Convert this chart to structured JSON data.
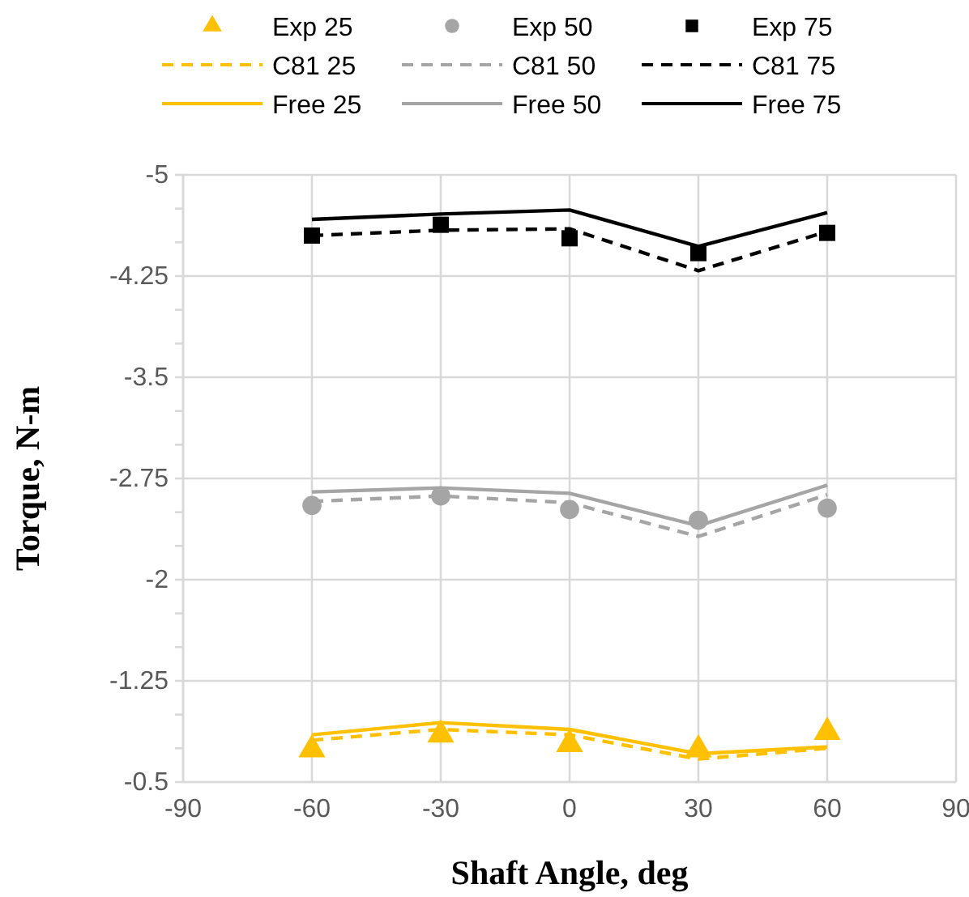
{
  "chart_data": {
    "type": "line",
    "xlabel": "Shaft Angle, deg",
    "ylabel": "Torque, N-m",
    "x": [
      -60,
      -30,
      0,
      30,
      60
    ],
    "xlim": [
      -90,
      90
    ],
    "xticks": [
      -90,
      -60,
      -30,
      0,
      30,
      60,
      90
    ],
    "ylim": [
      -0.5,
      -5
    ],
    "yticks": [
      -5,
      {
        "value": -4.75,
        "label": null
      },
      {
        "value": -4.5,
        "label": null
      },
      -4.25,
      {
        "value": -4,
        "label": null
      },
      {
        "value": -3.75,
        "label": null
      },
      -3.5,
      {
        "value": -3.25,
        "label": null
      },
      {
        "value": -3,
        "label": null
      },
      -2.75,
      {
        "value": -2.5,
        "label": null
      },
      {
        "value": -2.25,
        "label": null
      },
      -2,
      {
        "value": -1.75,
        "label": null
      },
      {
        "value": -1.5,
        "label": null
      },
      -1.25,
      {
        "value": -1,
        "label": null
      },
      {
        "value": -0.75,
        "label": null
      },
      -0.5
    ],
    "grid": true,
    "legend": "top",
    "series": [
      {
        "name": "Exp 25",
        "type": "scatter",
        "marker": "triangle",
        "color": "#ffc000",
        "values": [
          -0.74,
          -0.85,
          -0.78,
          -0.74,
          -0.87
        ]
      },
      {
        "name": "Exp 50",
        "type": "scatter",
        "marker": "circle",
        "color": "#a5a5a5",
        "values": [
          -2.55,
          -2.62,
          -2.52,
          -2.44,
          -2.53
        ]
      },
      {
        "name": "Exp 75",
        "type": "scatter",
        "marker": "square",
        "color": "#000000",
        "values": [
          -4.55,
          -4.63,
          -4.53,
          -4.42,
          -4.57
        ]
      },
      {
        "name": "C81 25",
        "line_style": "dashed",
        "color": "#ffc000",
        "values": [
          -0.81,
          -0.89,
          -0.85,
          -0.67,
          -0.75
        ]
      },
      {
        "name": "C81 50",
        "line_style": "dashed",
        "color": "#a5a5a5",
        "values": [
          -2.58,
          -2.62,
          -2.57,
          -2.32,
          -2.63
        ]
      },
      {
        "name": "C81 75",
        "line_style": "dashed",
        "color": "#000000",
        "values": [
          -4.55,
          -4.59,
          -4.6,
          -4.29,
          -4.58
        ]
      },
      {
        "name": "Free 25",
        "line_style": "solid",
        "color": "#ffc000",
        "values": [
          -0.85,
          -0.94,
          -0.89,
          -0.71,
          -0.76
        ]
      },
      {
        "name": "Free 50",
        "line_style": "solid",
        "color": "#a5a5a5",
        "values": [
          -2.65,
          -2.68,
          -2.64,
          -2.4,
          -2.7
        ]
      },
      {
        "name": "Free 75",
        "line_style": "solid",
        "color": "#000000",
        "values": [
          -4.67,
          -4.71,
          -4.74,
          -4.47,
          -4.72
        ]
      }
    ]
  }
}
